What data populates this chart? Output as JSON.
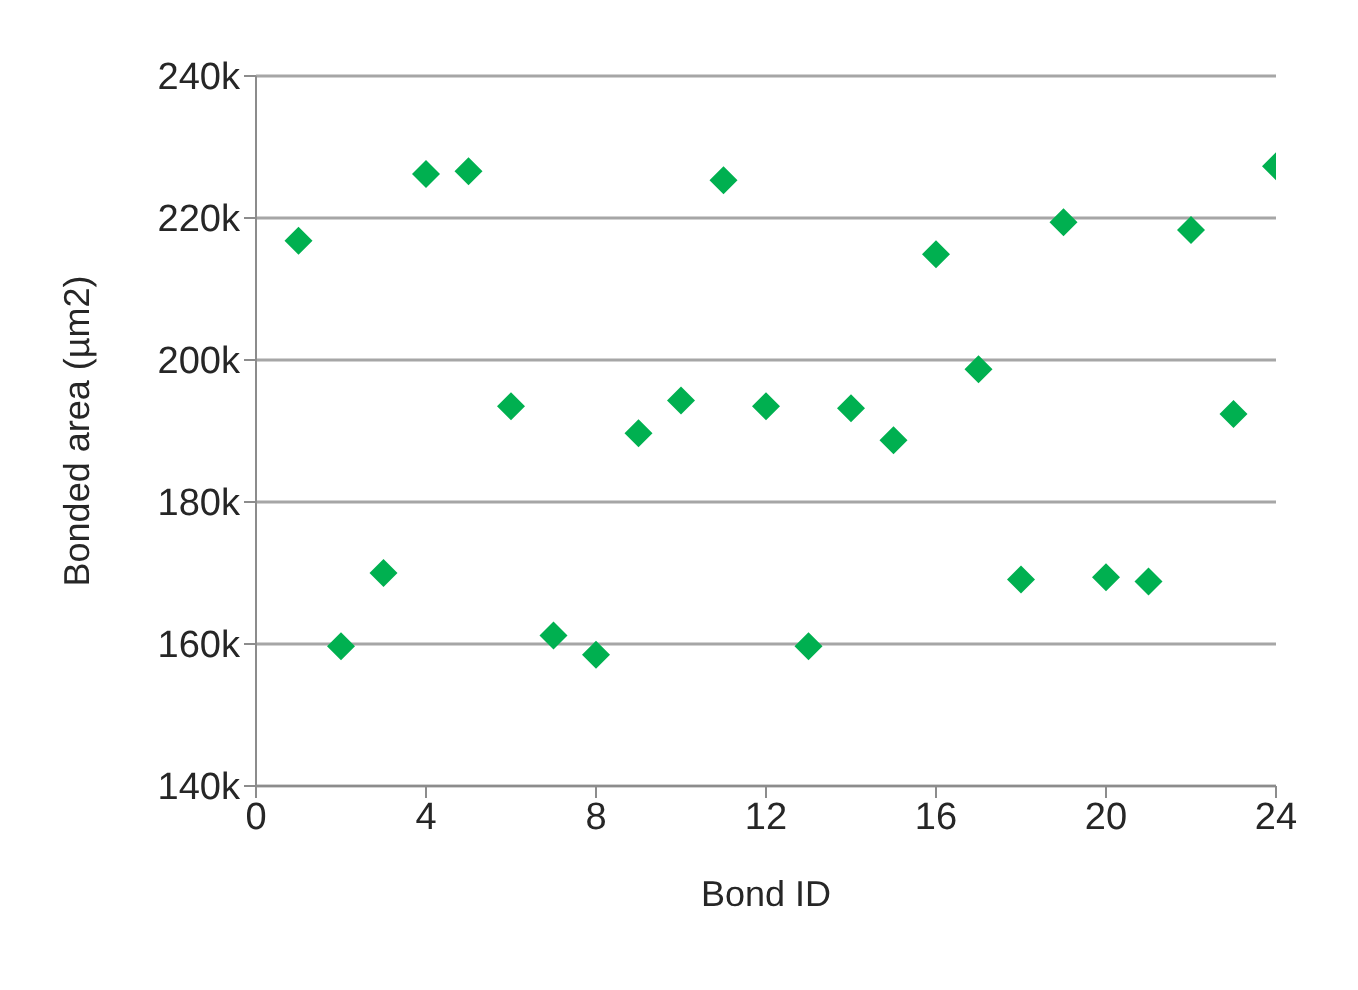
{
  "chart_data": {
    "type": "scatter",
    "xlabel": "Bond ID",
    "ylabel": "Bonded area (µm2)",
    "x": [
      1,
      2,
      3,
      4,
      5,
      6,
      7,
      8,
      9,
      10,
      11,
      12,
      13,
      14,
      15,
      16,
      17,
      18,
      19,
      20,
      21,
      22,
      23,
      24
    ],
    "series": [
      {
        "color": "#00b050",
        "values": [
          216800,
          159700,
          170000,
          226200,
          226600,
          193500,
          161200,
          158500,
          189700,
          194300,
          225300,
          193500,
          159700,
          193200,
          188700,
          214900,
          198700,
          169100,
          219400,
          169400,
          168800,
          218300,
          192400,
          227300
        ]
      }
    ],
    "xlim": [
      0,
      24
    ],
    "xticks": [
      0,
      4,
      8,
      12,
      16,
      20,
      24
    ],
    "ylim": [
      140000,
      240000
    ],
    "yticks": [
      {
        "value": 140000,
        "label": "140k"
      },
      {
        "value": 160000,
        "label": "160k"
      },
      {
        "value": 180000,
        "label": "180k"
      },
      {
        "value": 200000,
        "label": "200k"
      },
      {
        "value": 220000,
        "label": "220k"
      },
      {
        "value": 240000,
        "label": "240k"
      }
    ],
    "grid": "y",
    "marker": "diamond"
  }
}
